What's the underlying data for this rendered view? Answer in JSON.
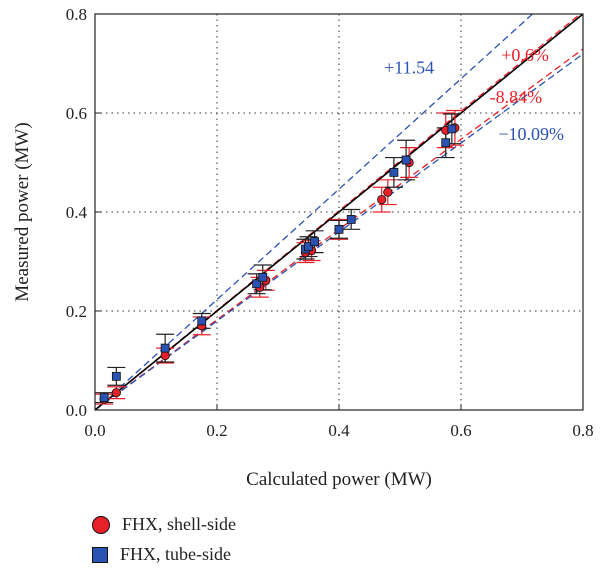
{
  "chart_data": {
    "type": "scatter",
    "xlabel": "Calculated power (MW)",
    "ylabel": "Measured power (MW)",
    "xlim": [
      0,
      0.8
    ],
    "ylim": [
      0,
      0.8
    ],
    "xticks": [
      "0.0",
      "0.2",
      "0.4",
      "0.6",
      "0.8"
    ],
    "yticks": [
      "0.0",
      "0.2",
      "0.4",
      "0.6",
      "0.8"
    ],
    "grid": true,
    "legend_position": "bottom",
    "series": [
      {
        "name": "FHX, shell-side",
        "marker": "circle",
        "color": "#e8202a",
        "errorbar_color": "#e8202a",
        "points": [
          {
            "x": 0.015,
            "y": 0.022,
            "err": 0.01
          },
          {
            "x": 0.035,
            "y": 0.035,
            "err": 0.012
          },
          {
            "x": 0.115,
            "y": 0.11,
            "err": 0.015
          },
          {
            "x": 0.175,
            "y": 0.17,
            "err": 0.018
          },
          {
            "x": 0.27,
            "y": 0.248,
            "err": 0.02
          },
          {
            "x": 0.28,
            "y": 0.262,
            "err": 0.02
          },
          {
            "x": 0.345,
            "y": 0.318,
            "err": 0.02
          },
          {
            "x": 0.355,
            "y": 0.322,
            "err": 0.02
          },
          {
            "x": 0.4,
            "y": 0.365,
            "err": 0.02
          },
          {
            "x": 0.47,
            "y": 0.425,
            "err": 0.025
          },
          {
            "x": 0.48,
            "y": 0.44,
            "err": 0.025
          },
          {
            "x": 0.515,
            "y": 0.5,
            "err": 0.03
          },
          {
            "x": 0.575,
            "y": 0.565,
            "err": 0.035
          },
          {
            "x": 0.59,
            "y": 0.57,
            "err": 0.035
          }
        ]
      },
      {
        "name": "FHX, tube-side",
        "marker": "square",
        "color": "#2a52b2",
        "errorbar_color": "#222222",
        "points": [
          {
            "x": 0.015,
            "y": 0.025,
            "err": 0.01
          },
          {
            "x": 0.035,
            "y": 0.068,
            "err": 0.018
          },
          {
            "x": 0.115,
            "y": 0.125,
            "err": 0.028
          },
          {
            "x": 0.175,
            "y": 0.18,
            "err": 0.015
          },
          {
            "x": 0.265,
            "y": 0.255,
            "err": 0.02
          },
          {
            "x": 0.275,
            "y": 0.268,
            "err": 0.025
          },
          {
            "x": 0.345,
            "y": 0.325,
            "err": 0.02
          },
          {
            "x": 0.35,
            "y": 0.33,
            "err": 0.02
          },
          {
            "x": 0.36,
            "y": 0.34,
            "err": 0.022
          },
          {
            "x": 0.4,
            "y": 0.365,
            "err": 0.018
          },
          {
            "x": 0.42,
            "y": 0.385,
            "err": 0.02
          },
          {
            "x": 0.49,
            "y": 0.48,
            "err": 0.03
          },
          {
            "x": 0.51,
            "y": 0.505,
            "err": 0.04
          },
          {
            "x": 0.575,
            "y": 0.54,
            "err": 0.03
          },
          {
            "x": 0.585,
            "y": 0.568,
            "err": 0.03
          }
        ]
      }
    ],
    "reference_lines": [
      {
        "label": "+11.54",
        "slope": 1.1154,
        "color": "#2a52b2",
        "style": "dashed"
      },
      {
        "label": "+0.6%",
        "slope": 1.006,
        "color": "#e8202a",
        "style": "dashed"
      },
      {
        "label": "-8.84%",
        "slope": 0.9116,
        "color": "#e8202a",
        "style": "dashed"
      },
      {
        "label": "−10.09%",
        "slope": 0.8991,
        "color": "#2a52b2",
        "style": "dashed"
      },
      {
        "label": "",
        "slope": 1.0,
        "color": "#000000",
        "style": "solid"
      }
    ]
  },
  "legend": {
    "shell": "FHX, shell-side",
    "tube": "FHX, tube-side"
  }
}
